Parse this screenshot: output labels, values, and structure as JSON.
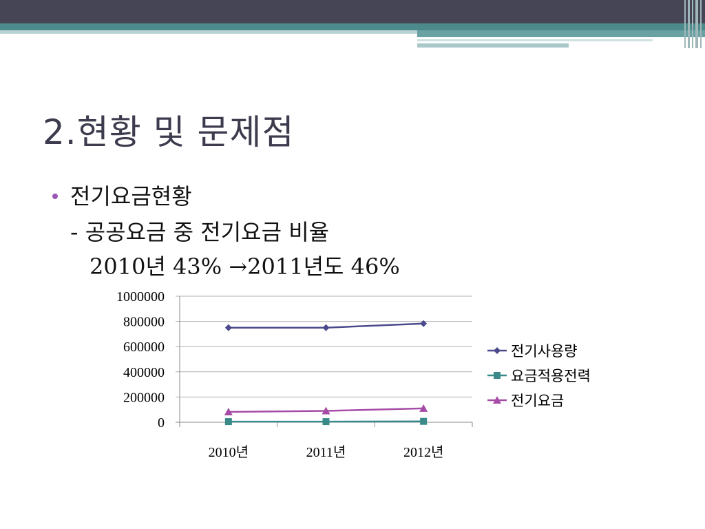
{
  "title": "2.현황 및 문제점",
  "bullet": {
    "heading": "전기요금현황",
    "sub": "- 공공요금 중 전기요금 비율",
    "detail": "2010년 43% →2011년도 46%"
  },
  "chart_data": {
    "type": "line",
    "categories": [
      "2010년",
      "2011년",
      "2012년"
    ],
    "series": [
      {
        "name": "전기사용량",
        "values": [
          750000,
          750000,
          783000
        ],
        "color": "#4a4a8c",
        "marker": "diamond"
      },
      {
        "name": "요금적용전력",
        "values": [
          5000,
          5000,
          7000
        ],
        "color": "#3a8a8a",
        "marker": "square"
      },
      {
        "name": "전기요금",
        "values": [
          82000,
          90000,
          110000
        ],
        "color": "#a64ca6",
        "marker": "triangle"
      }
    ],
    "yticks": [
      "0",
      "200000",
      "400000",
      "600000",
      "800000",
      "1000000"
    ],
    "ylim": [
      0,
      1000000
    ],
    "grid": true,
    "legend": "right"
  }
}
